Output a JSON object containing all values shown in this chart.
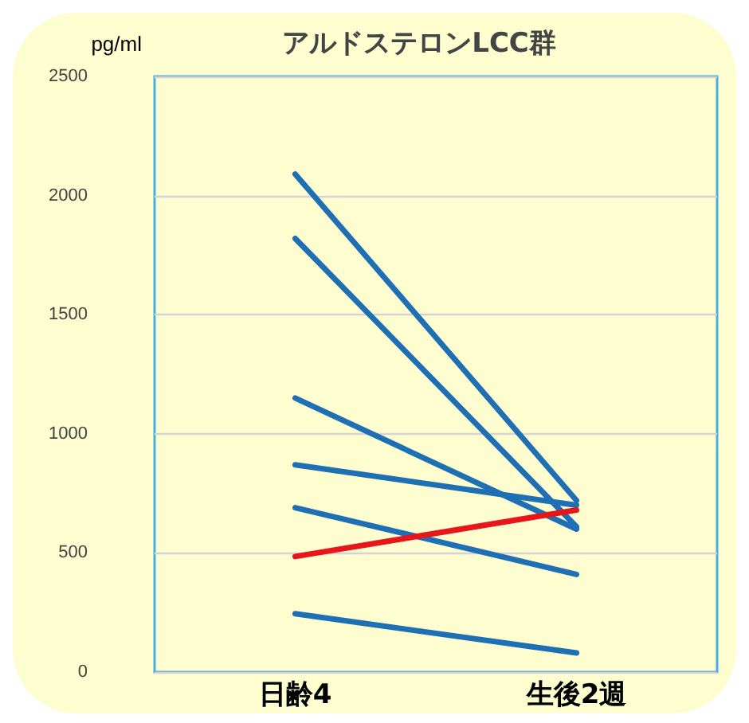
{
  "chart_data": {
    "type": "line",
    "title": "アルドステロンLCC群",
    "ylabel": "pg/ml",
    "categories": [
      "日齢4",
      "生後2週"
    ],
    "series": [
      {
        "color": "#1f6fb5",
        "values": [
          2090,
          720
        ]
      },
      {
        "color": "#1f6fb5",
        "values": [
          1820,
          610
        ]
      },
      {
        "color": "#1f6fb5",
        "values": [
          1150,
          600
        ]
      },
      {
        "color": "#1f6fb5",
        "values": [
          870,
          700
        ]
      },
      {
        "color": "#1f6fb5",
        "values": [
          690,
          410
        ]
      },
      {
        "color": "#e8161b",
        "values": [
          485,
          680
        ]
      },
      {
        "color": "#1f6fb5",
        "values": [
          245,
          80
        ]
      }
    ],
    "ylim": [
      0,
      2500
    ],
    "yticks": [
      0,
      500,
      1000,
      1500,
      2000,
      2500
    ],
    "grid": "y",
    "marker": "none",
    "line_style": "solid"
  }
}
